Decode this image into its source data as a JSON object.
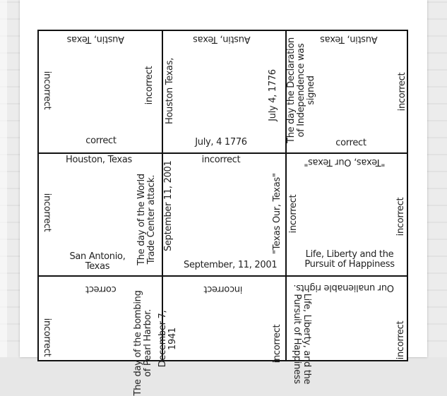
{
  "cards": {
    "r1c1": {
      "top": "Austin, Texas",
      "left": "incorrect",
      "right": "incorrect",
      "bottom": "correct"
    },
    "r1c2": {
      "top": "Austin, Texas",
      "left": "Houston Texas,",
      "right": "July 4, 1776",
      "bottom": "July, 4 1776"
    },
    "r1c3": {
      "top": "Austin, Texas",
      "left": "The day the Declaration of Independence was signed",
      "right": "incorrect",
      "bottom": "correct"
    },
    "r2c1": {
      "top": "Houston, Texas",
      "left": "incorrect",
      "right": "The day of the World Trade Center attack.",
      "bottom": "San Antonio, Texas"
    },
    "r2c2": {
      "top": "incorrect",
      "left": "September 11, 2001",
      "right": "\"Texas Our, Texas\"",
      "bottom": "September, 11, 2001"
    },
    "r2c3": {
      "top": "\"Texas, Our Texas\"",
      "left": "incorrect",
      "right": "incorrect",
      "bottom": "Life, Liberty and the Pursuit of Happiness"
    },
    "r3c1": {
      "top": "correct",
      "left": "incorrect",
      "right": "The day of the bombing of Pearl Harbor."
    },
    "r3c2": {
      "top": "incorrect",
      "left": "December 7, 1941",
      "right": "incorrect"
    },
    "r3c3": {
      "top": "Our unalienable rights.",
      "left": "Life, Liberty, and the Pursuit of Happiness",
      "right": "incorrect"
    }
  }
}
